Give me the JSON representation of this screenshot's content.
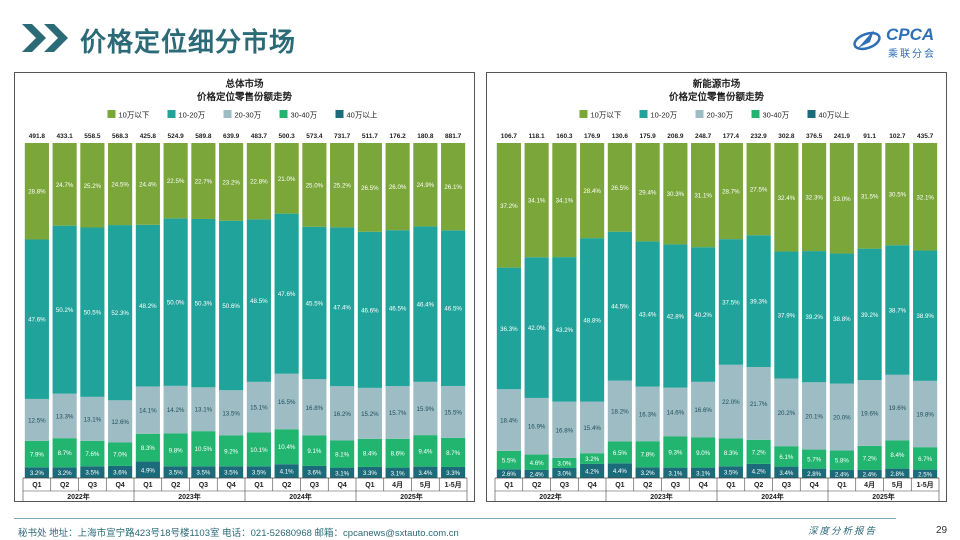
{
  "header": {
    "title": "价格定位细分市场"
  },
  "logo": {
    "text": "CPCA",
    "subtext": "乘联分会"
  },
  "footer": {
    "address": "秘书处  地址：上海市宣宁路423号18号楼1103室  电话：021-52680968  邮箱：cpcanews@sxtauto.com.cn",
    "slogan": "深度分析报告",
    "page_number": "29"
  },
  "colors": {
    "series": [
      "#7aa63a",
      "#20a39a",
      "#9ebcc4",
      "#21b56f",
      "#1b6b7a"
    ],
    "title": "#2b6a77"
  },
  "chart_data": [
    {
      "type": "bar",
      "stacked": "percent",
      "title": "总体市场",
      "subtitle": "价格定位零售份额走势",
      "legend_position": "top",
      "categories": [
        "Q1",
        "Q2",
        "Q3",
        "Q4",
        "Q1",
        "Q2",
        "Q3",
        "Q4",
        "Q1",
        "Q2",
        "Q3",
        "Q4",
        "Q1",
        "4月",
        "5月",
        "1-5月"
      ],
      "groups": [
        {
          "label": "2022年",
          "start": 0,
          "end": 3
        },
        {
          "label": "2023年",
          "start": 4,
          "end": 7
        },
        {
          "label": "2024年",
          "start": 8,
          "end": 11
        },
        {
          "label": "2025年",
          "start": 12,
          "end": 15
        }
      ],
      "totals": [
        "491.8",
        "433.1",
        "558.5",
        "568.3",
        "425.8",
        "524.9",
        "589.8",
        "639.9",
        "483.7",
        "500.3",
        "573.4",
        "731.7",
        "511.7",
        "176.2",
        "180.8",
        "881.7"
      ],
      "series": [
        {
          "name": "10万以下",
          "values": [
            28.8,
            24.7,
            25.2,
            24.5,
            24.4,
            22.5,
            22.7,
            23.2,
            22.8,
            21.0,
            25.0,
            25.2,
            26.5,
            26.0,
            24.9,
            26.1
          ]
        },
        {
          "name": "10-20万",
          "values": [
            47.6,
            50.2,
            50.5,
            52.3,
            48.2,
            50.0,
            50.3,
            50.6,
            48.5,
            47.6,
            45.5,
            47.4,
            46.6,
            46.5,
            46.4,
            46.5
          ]
        },
        {
          "name": "20-30万",
          "values": [
            12.5,
            13.3,
            13.1,
            12.6,
            14.1,
            14.2,
            13.1,
            13.5,
            15.1,
            16.5,
            16.8,
            16.2,
            15.2,
            15.7,
            15.9,
            15.5
          ]
        },
        {
          "name": "30-40万",
          "values": [
            7.9,
            8.7,
            7.6,
            7.0,
            8.3,
            9.8,
            10.5,
            9.2,
            10.1,
            10.4,
            9.1,
            8.1,
            8.4,
            8.6,
            9.4,
            8.7
          ]
        },
        {
          "name": "40万以上",
          "values": [
            3.2,
            3.2,
            3.5,
            3.6,
            4.9,
            3.5,
            3.5,
            3.5,
            3.5,
            4.1,
            3.6,
            3.1,
            3.3,
            3.1,
            3.4,
            3.3
          ]
        }
      ]
    },
    {
      "type": "bar",
      "stacked": "percent",
      "title": "新能源市场",
      "subtitle": "价格定位零售份额走势",
      "legend_position": "top",
      "categories": [
        "Q1",
        "Q2",
        "Q3",
        "Q4",
        "Q1",
        "Q2",
        "Q3",
        "Q4",
        "Q1",
        "Q2",
        "Q3",
        "Q4",
        "Q1",
        "4月",
        "5月",
        "1-5月"
      ],
      "groups": [
        {
          "label": "2022年",
          "start": 0,
          "end": 3
        },
        {
          "label": "2023年",
          "start": 4,
          "end": 7
        },
        {
          "label": "2024年",
          "start": 8,
          "end": 11
        },
        {
          "label": "2025年",
          "start": 12,
          "end": 15
        }
      ],
      "totals": [
        "106.7",
        "118.1",
        "160.3",
        "176.9",
        "130.6",
        "175.9",
        "208.9",
        "248.7",
        "177.4",
        "232.9",
        "302.8",
        "376.5",
        "241.9",
        "91.1",
        "102.7",
        "435.7"
      ],
      "series": [
        {
          "name": "10万以下",
          "values": [
            37.2,
            34.1,
            34.1,
            28.4,
            26.5,
            29.4,
            30.3,
            31.1,
            28.7,
            27.5,
            32.4,
            32.3,
            33.0,
            31.5,
            30.5,
            32.1
          ]
        },
        {
          "name": "10-20万",
          "values": [
            36.3,
            42.0,
            43.2,
            48.8,
            44.5,
            43.4,
            42.8,
            40.2,
            37.5,
            39.3,
            37.9,
            39.2,
            38.8,
            39.2,
            38.7,
            38.9
          ]
        },
        {
          "name": "20-30万",
          "values": [
            18.4,
            16.9,
            16.8,
            15.4,
            18.2,
            16.3,
            14.6,
            16.6,
            22.0,
            21.7,
            20.2,
            20.1,
            20.0,
            19.6,
            19.6,
            19.8
          ]
        },
        {
          "name": "30-40万",
          "values": [
            5.5,
            4.6,
            3.0,
            3.2,
            6.5,
            7.8,
            9.3,
            9.0,
            8.3,
            7.2,
            6.1,
            5.7,
            5.8,
            7.2,
            8.4,
            6.7
          ]
        },
        {
          "name": "40万以上",
          "values": [
            2.6,
            2.4,
            3.0,
            4.2,
            4.4,
            3.2,
            3.1,
            3.1,
            3.5,
            4.2,
            3.4,
            2.8,
            2.4,
            2.4,
            2.8,
            2.5
          ]
        }
      ]
    }
  ]
}
